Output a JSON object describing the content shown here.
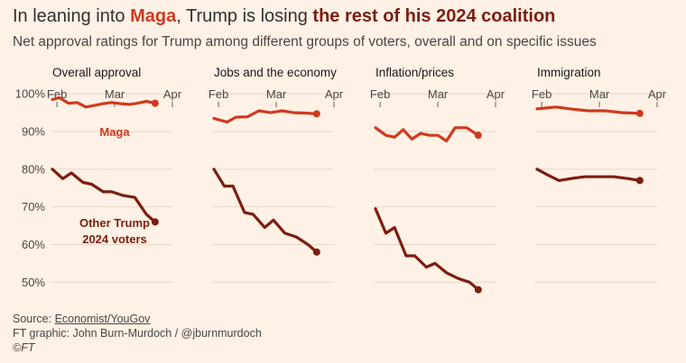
{
  "header": {
    "title_pre": "In leaning into ",
    "title_maga": "Maga",
    "title_mid": ", Trump is losing ",
    "title_rest": "the rest of his 2024 coalition",
    "subtitle": "Net approval ratings for Trump among different groups of voters, overall and on specific issues"
  },
  "footer": {
    "source_prefix": "Source: ",
    "source_link": "Economist/YouGov",
    "credit": "FT graphic: John Burn-Murdoch / @jburnmurdoch",
    "copyright": "©FT"
  },
  "colors": {
    "background": "#fff1e5",
    "maga": "#cf3a1f",
    "other": "#7d1d10",
    "grid": "#e2d6cb",
    "text": "#33302e"
  },
  "chart_data": {
    "type": "line",
    "y_ticks": [
      100,
      90,
      80,
      70,
      60,
      50
    ],
    "y_tick_labels": [
      "100%",
      "90%",
      "80%",
      "70%",
      "60%",
      "50%"
    ],
    "ylim": [
      46,
      101
    ],
    "x_ticks": [
      "Feb",
      "Mar",
      "Apr"
    ],
    "x_tick_positions": [
      1,
      2,
      3
    ],
    "grid": true,
    "panels": [
      {
        "title": "Overall approval",
        "series": [
          {
            "name": "Maga",
            "color": "#cf3a1f",
            "x": [
              0.92,
              1.04,
              1.2,
              1.35,
              1.5,
              1.65,
              1.8,
              1.95,
              2.1,
              2.25,
              2.4,
              2.55,
              2.7
            ],
            "values": [
              98.5,
              99,
              97.5,
              97.7,
              96.5,
              96.9,
              97.4,
              97.7,
              97.4,
              97.2,
              97.5,
              98,
              97.5
            ]
          },
          {
            "name": "Other Trump 2024 voters",
            "color": "#7d1d10",
            "x": [
              0.92,
              1.1,
              1.25,
              1.45,
              1.6,
              1.8,
              1.95,
              2.15,
              2.35,
              2.55,
              2.7
            ],
            "values": [
              80,
              77.5,
              79,
              76.5,
              76,
              74,
              74,
              73,
              72.5,
              68,
              66
            ]
          }
        ]
      },
      {
        "title": "Jobs and the economy",
        "series": [
          {
            "name": "Maga",
            "color": "#cf3a1f",
            "x": [
              0.92,
              1.15,
              1.3,
              1.5,
              1.7,
              1.9,
              2.1,
              2.3,
              2.5,
              2.7
            ],
            "values": [
              93.5,
              92.5,
              93.8,
              93.9,
              95.5,
              95,
              95.5,
              95,
              94.9,
              94.7
            ]
          },
          {
            "name": "Other Trump 2024 voters",
            "color": "#7d1d10",
            "x": [
              0.92,
              1.1,
              1.25,
              1.45,
              1.6,
              1.8,
              1.95,
              2.15,
              2.35,
              2.55,
              2.7
            ],
            "values": [
              80,
              75.5,
              75.5,
              68.5,
              68,
              64.5,
              66.5,
              63,
              62,
              60,
              58
            ]
          }
        ]
      },
      {
        "title": "Inflation/prices",
        "series": [
          {
            "name": "Maga",
            "color": "#cf3a1f",
            "x": [
              0.92,
              1.1,
              1.25,
              1.4,
              1.55,
              1.7,
              1.85,
              2.0,
              2.15,
              2.3,
              2.5,
              2.7
            ],
            "values": [
              91,
              89,
              88.5,
              90.5,
              88,
              89.5,
              89,
              89,
              87.5,
              91,
              91,
              89
            ]
          },
          {
            "name": "Other Trump 2024 voters",
            "color": "#7d1d10",
            "x": [
              0.92,
              1.1,
              1.25,
              1.45,
              1.6,
              1.8,
              1.95,
              2.15,
              2.35,
              2.55,
              2.7
            ],
            "values": [
              69.5,
              63,
              64.5,
              57,
              57,
              54,
              55,
              52.5,
              51,
              50,
              48
            ]
          }
        ]
      },
      {
        "title": "Immigration",
        "series": [
          {
            "name": "Maga",
            "color": "#cf3a1f",
            "x": [
              0.92,
              1.25,
              1.5,
              1.8,
              2.1,
              2.4,
              2.7
            ],
            "values": [
              96,
              96.5,
              96,
              95.5,
              95.5,
              95,
              94.8
            ]
          },
          {
            "name": "Other Trump 2024 voters",
            "color": "#7d1d10",
            "x": [
              0.92,
              1.1,
              1.3,
              1.5,
              1.75,
              2.0,
              2.25,
              2.5,
              2.7
            ],
            "values": [
              80,
              78.5,
              77,
              77.5,
              78,
              78,
              78,
              77.5,
              77
            ]
          }
        ]
      }
    ],
    "annotations": [
      {
        "panel": 0,
        "series": 0,
        "lines": [
          "Maga"
        ]
      },
      {
        "panel": 0,
        "series": 1,
        "lines": [
          "Other Trump",
          "2024 voters"
        ]
      }
    ]
  }
}
